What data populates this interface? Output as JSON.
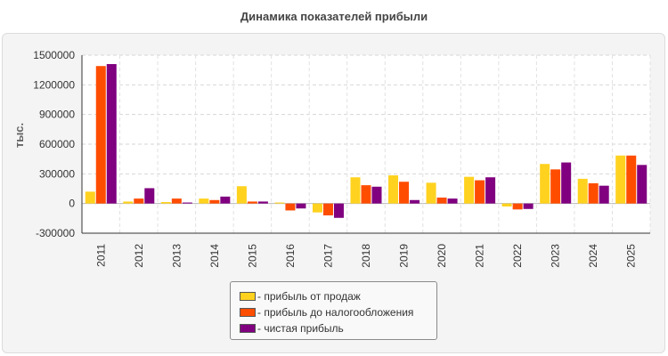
{
  "chart_data": {
    "type": "bar",
    "title": "Динамика показателей прибыли",
    "ylabel": "тыс.",
    "xlabel": "",
    "ylim": [
      -300000,
      1500000
    ],
    "yticks": [
      1500000,
      1200000,
      900000,
      600000,
      300000,
      0,
      -300000
    ],
    "grid": true,
    "legend_position": "bottom-center",
    "categories": [
      "2011",
      "2012",
      "2013",
      "2014",
      "2015",
      "2016",
      "2017",
      "2018",
      "2019",
      "2020",
      "2021",
      "2022",
      "2023",
      "2024",
      "2025"
    ],
    "series": [
      {
        "name": "- прибыль от продаж",
        "color": "#ffd21f",
        "values": [
          120000,
          20000,
          15000,
          50000,
          175000,
          10000,
          -90000,
          265000,
          285000,
          210000,
          270000,
          -30000,
          400000,
          250000,
          485000
        ]
      },
      {
        "name": "- прибыль до налогообложения",
        "color": "#ff4d00",
        "values": [
          1390000,
          50000,
          50000,
          35000,
          20000,
          -70000,
          -120000,
          185000,
          220000,
          60000,
          235000,
          -60000,
          345000,
          205000,
          485000
        ]
      },
      {
        "name": "- чистая прибыль",
        "color": "#800080",
        "values": [
          1410000,
          155000,
          10000,
          70000,
          20000,
          -50000,
          -145000,
          170000,
          35000,
          50000,
          265000,
          -55000,
          415000,
          180000,
          390000
        ]
      }
    ]
  }
}
